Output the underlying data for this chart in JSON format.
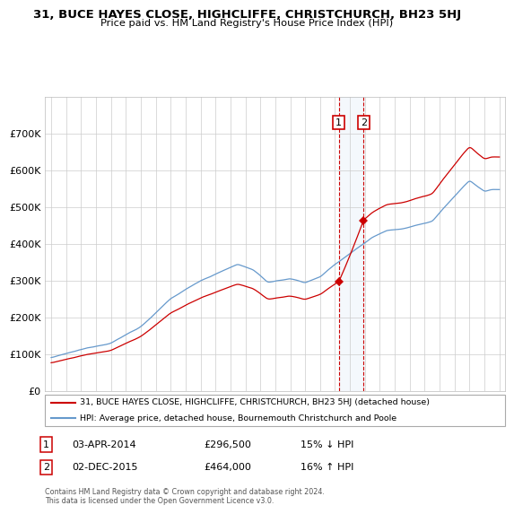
{
  "title": "31, BUCE HAYES CLOSE, HIGHCLIFFE, CHRISTCHURCH, BH23 5HJ",
  "subtitle": "Price paid vs. HM Land Registry's House Price Index (HPI)",
  "property_color": "#cc0000",
  "hpi_color": "#6699cc",
  "background_color": "#ffffff",
  "plot_bg_color": "#ffffff",
  "grid_color": "#cccccc",
  "annotation1": {
    "label": "1",
    "date": "03-APR-2014",
    "price": 296500,
    "pct": "15% ↓ HPI"
  },
  "annotation2": {
    "label": "2",
    "date": "02-DEC-2015",
    "price": 464000,
    "pct": "16% ↑ HPI"
  },
  "legend_property": "31, BUCE HAYES CLOSE, HIGHCLIFFE, CHRISTCHURCH, BH23 5HJ (detached house)",
  "legend_hpi": "HPI: Average price, detached house, Bournemouth Christchurch and Poole",
  "footer": "Contains HM Land Registry data © Crown copyright and database right 2024.\nThis data is licensed under the Open Government Licence v3.0.",
  "ylim": [
    0,
    800000
  ],
  "yticks": [
    0,
    100000,
    200000,
    300000,
    400000,
    500000,
    600000,
    700000
  ],
  "sale1_year": 2014.25,
  "sale1_price": 296500,
  "sale2_year": 2015.92,
  "sale2_price": 464000
}
